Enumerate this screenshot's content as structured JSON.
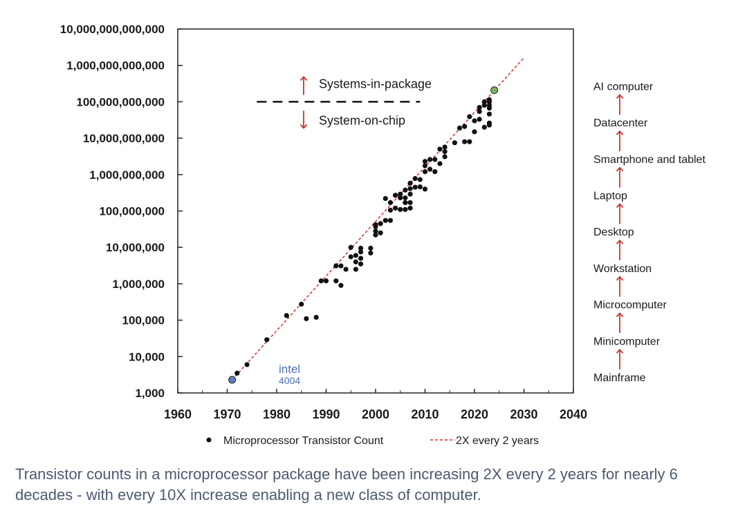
{
  "chart_data": {
    "type": "scatter",
    "title": "",
    "xlabel": "",
    "ylabel": "",
    "xlim": [
      1960,
      2040
    ],
    "ylim": [
      1000,
      10000000000000
    ],
    "yscale": "log",
    "x_ticks": [
      "1960",
      "1970",
      "1980",
      "1990",
      "2000",
      "2010",
      "2020",
      "2030",
      "2040"
    ],
    "y_ticks": [
      "1,000",
      "10,000",
      "100,000",
      "1,000,000",
      "10,000,000",
      "100,000,000",
      "1,000,000,000",
      "10,000,000,000",
      "100,000,000,000",
      "1,000,000,000,000",
      "10,000,000,000,000"
    ],
    "grid": false,
    "legend_placement": "bottom",
    "series": [
      {
        "name": "Microprocessor Transistor Count",
        "color": "#111111",
        "points": [
          [
            1972,
            3500
          ],
          [
            1974,
            6000
          ],
          [
            1978,
            29000
          ],
          [
            1982,
            134000
          ],
          [
            1985,
            275000
          ],
          [
            1986,
            110000
          ],
          [
            1988,
            120000
          ],
          [
            1989,
            1200000
          ],
          [
            1990,
            1200000
          ],
          [
            1992,
            3100000
          ],
          [
            1992,
            1200000
          ],
          [
            1993,
            3100000
          ],
          [
            1993,
            900000
          ],
          [
            1994,
            2500000
          ],
          [
            1995,
            5500000
          ],
          [
            1995,
            10000000
          ],
          [
            1996,
            6000000
          ],
          [
            1996,
            4000000
          ],
          [
            1996,
            2500000
          ],
          [
            1997,
            9500000
          ],
          [
            1997,
            7500000
          ],
          [
            1997,
            5000000
          ],
          [
            1997,
            3500000
          ],
          [
            1999,
            9500000
          ],
          [
            1999,
            7000000
          ],
          [
            2000,
            22000000
          ],
          [
            2000,
            28000000
          ],
          [
            2000,
            37000000
          ],
          [
            2000,
            42000000
          ],
          [
            2001,
            25000000
          ],
          [
            2001,
            45000000
          ],
          [
            2002,
            55000000
          ],
          [
            2003,
            55000000
          ],
          [
            2002,
            220000000
          ],
          [
            2003,
            170000000
          ],
          [
            2003,
            105000000
          ],
          [
            2004,
            270000000
          ],
          [
            2004,
            120000000
          ],
          [
            2005,
            230000000
          ],
          [
            2005,
            290000000
          ],
          [
            2005,
            110000000
          ],
          [
            2006,
            170000000
          ],
          [
            2006,
            230000000
          ],
          [
            2006,
            110000000
          ],
          [
            2006,
            375000000
          ],
          [
            2007,
            580000000
          ],
          [
            2007,
            290000000
          ],
          [
            2007,
            410000000
          ],
          [
            2007,
            170000000
          ],
          [
            2007,
            120000000
          ],
          [
            2008,
            780000000
          ],
          [
            2008,
            450000000
          ],
          [
            2009,
            730000000
          ],
          [
            2009,
            460000000
          ],
          [
            2010,
            400000000
          ],
          [
            2010,
            1200000000
          ],
          [
            2010,
            2300000000
          ],
          [
            2010,
            1750000000
          ],
          [
            2011,
            1400000000
          ],
          [
            2011,
            2600000000
          ],
          [
            2012,
            1200000000
          ],
          [
            2012,
            2600000000
          ],
          [
            2013,
            5000000000
          ],
          [
            2013,
            2000000000
          ],
          [
            2014,
            4300000000
          ],
          [
            2014,
            5700000000
          ],
          [
            2014,
            3100000000
          ],
          [
            2016,
            7500000000
          ],
          [
            2017,
            19000000000
          ],
          [
            2018,
            21000000000
          ],
          [
            2018,
            8000000000
          ],
          [
            2019,
            39000000000
          ],
          [
            2019,
            8000000000
          ],
          [
            2020,
            30000000000
          ],
          [
            2020,
            15000000000
          ],
          [
            2021,
            54000000000
          ],
          [
            2021,
            33000000000
          ],
          [
            2021,
            70000000000
          ],
          [
            2022,
            20000000000
          ],
          [
            2022,
            80000000000
          ],
          [
            2022,
            100000000000
          ],
          [
            2023,
            26000000000
          ],
          [
            2023,
            46000000000
          ],
          [
            2023,
            67000000000
          ],
          [
            2023,
            100000000000
          ],
          [
            2023,
            114000000000
          ],
          [
            2023,
            80000000000
          ],
          [
            2023,
            23000000000
          ]
        ]
      },
      {
        "name": "2X every 2 years",
        "type": "line",
        "style": "dashed",
        "color": "#d0312d",
        "points": [
          [
            1971,
            2300
          ],
          [
            2030,
            1620000000000
          ]
        ]
      }
    ],
    "highlighted_points": [
      {
        "x": 1971,
        "y": 2300,
        "color": "#5b7fc7",
        "label": "intel",
        "sublabel": "4004"
      },
      {
        "x": 2024,
        "y": 208000000000,
        "color": "#7db25a"
      }
    ],
    "divider": {
      "y": 100000000000,
      "x_from": 1976,
      "x_to": 2009,
      "above_label": "Systems-in-package",
      "below_label": "System-on-chip",
      "arrow_color": "#d0312d"
    },
    "computer_classes": [
      {
        "label": "Mainframe",
        "y": 1000
      },
      {
        "label": "Minicomputer",
        "y": 10000
      },
      {
        "label": "Microcomputer",
        "y": 100000
      },
      {
        "label": "Workstation",
        "y": 1000000
      },
      {
        "label": "Desktop",
        "y": 10000000
      },
      {
        "label": "Laptop",
        "y": 100000000
      },
      {
        "label": "Smartphone and tablet",
        "y": 1000000000
      },
      {
        "label": "Datacenter",
        "y": 10000000000
      },
      {
        "label": "AI computer",
        "y": 100000000000
      }
    ]
  },
  "colors": {
    "class_arrow": "#d0312d",
    "caption": "#4c5a6e"
  },
  "caption": "Transistor counts in a microprocessor package have been increasing 2X every 2 years for nearly 6 decades - with every 10X increase enabling a new class of computer."
}
